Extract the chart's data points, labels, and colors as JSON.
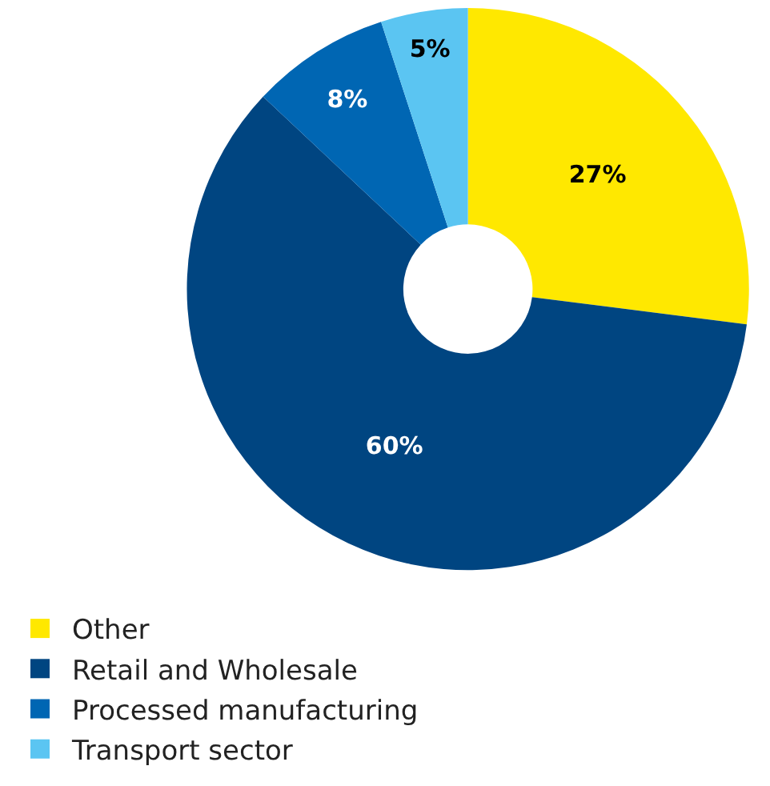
{
  "chart_data": {
    "type": "donut",
    "categories": [
      "Other",
      "Retail and Wholesale",
      "Processed manufacturing",
      "Transport sector"
    ],
    "values": [
      27,
      60,
      8,
      5
    ],
    "colors": [
      "#ffe800",
      "#004581",
      "#0066b3",
      "#5bc5f2"
    ],
    "value_labels": [
      "27%",
      "60%",
      "8%",
      "5%"
    ],
    "legend": "bottom left"
  }
}
